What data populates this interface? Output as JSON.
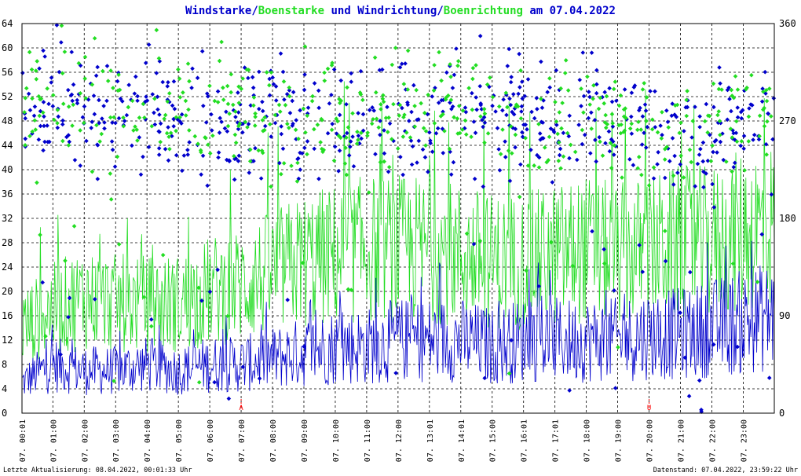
{
  "chart_data": {
    "type": "line",
    "title_parts": [
      {
        "text": "Windstarke",
        "color": "#0000cc"
      },
      {
        "text": "/",
        "color": "#0000cc"
      },
      {
        "text": "Boenstarke",
        "color": "#22dd22"
      },
      {
        "text": " und ",
        "color": "#0000cc"
      },
      {
        "text": "Windrichtung",
        "color": "#0000cc"
      },
      {
        "text": "/",
        "color": "#0000cc"
      },
      {
        "text": "Boenrichtung",
        "color": "#22dd22"
      },
      {
        "text": " am 07.04.2022",
        "color": "#0000cc"
      }
    ],
    "left_axis": {
      "ylim": [
        0,
        64
      ],
      "ticks": [
        "0",
        "4",
        "8",
        "12",
        "16",
        "20",
        "24",
        "28",
        "32",
        "36",
        "40",
        "44",
        "48",
        "52",
        "56",
        "60",
        "64"
      ]
    },
    "right_axis": {
      "ylim": [
        0,
        360
      ],
      "ticks": [
        "0",
        "90",
        "180",
        "270",
        "360"
      ]
    },
    "x_ticks": [
      "07. 00:01",
      "07. 01:00",
      "07. 02:00",
      "07. 03:00",
      "07. 04:00",
      "07. 05:00",
      "07. 06:00",
      "07. 07:00",
      "07. 08:00",
      "07. 09:00",
      "07. 10:00",
      "07. 11:00",
      "07. 12:00",
      "07. 13:01",
      "07. 14:01",
      "07. 15:00",
      "07. 16:01",
      "07. 17:01",
      "07. 18:00",
      "07. 19:00",
      "07. 20:00",
      "07. 21:00",
      "07. 22:00",
      "07. 23:00"
    ],
    "grid": true,
    "markers": [
      {
        "label": "A",
        "hour": 7.0
      },
      {
        "label": "U",
        "hour": 20.0
      }
    ],
    "series": [
      {
        "name": "Windstarke",
        "kind": "line",
        "axis": "left",
        "color": "#0000cc",
        "hours": [
          0,
          1,
          2,
          3,
          4,
          5,
          6,
          7,
          8,
          9,
          10,
          11,
          12,
          13,
          14,
          15,
          16,
          17,
          18,
          19,
          20,
          21,
          22,
          23,
          24
        ],
        "values": [
          5,
          8,
          7,
          7,
          8,
          7,
          8,
          8,
          9,
          10,
          11,
          11,
          12,
          12,
          12,
          11,
          12,
          12,
          12,
          12,
          13,
          13,
          14,
          15,
          16
        ]
      },
      {
        "name": "Boenstarke",
        "kind": "line",
        "axis": "left",
        "color": "#22dd22",
        "hours": [
          0,
          1,
          2,
          3,
          4,
          5,
          6,
          7,
          8,
          9,
          10,
          11,
          12,
          13,
          14,
          15,
          16,
          17,
          18,
          19,
          20,
          21,
          22,
          23,
          24
        ],
        "values": [
          14,
          17,
          19,
          18,
          18,
          18,
          20,
          21,
          23,
          25,
          26,
          27,
          27,
          27,
          26,
          25,
          25,
          26,
          27,
          26,
          27,
          28,
          28,
          30,
          31
        ]
      },
      {
        "name": "Windrichtung",
        "kind": "scatter",
        "axis": "right",
        "color": "#0000cc",
        "hours": [
          0,
          1,
          2,
          3,
          4,
          5,
          6,
          7,
          8,
          9,
          10,
          11,
          12,
          13,
          14,
          15,
          16,
          17,
          18,
          19,
          20,
          21,
          22,
          23,
          24
        ],
        "values": [
          280,
          285,
          280,
          270,
          285,
          280,
          270,
          275,
          270,
          270,
          280,
          270,
          280,
          270,
          285,
          280,
          275,
          270,
          275,
          270,
          265,
          255,
          260,
          265,
          270
        ]
      },
      {
        "name": "Boenrichtung",
        "kind": "scatter",
        "axis": "right",
        "color": "#22dd22",
        "hours": [
          0,
          1,
          2,
          3,
          4,
          5,
          6,
          7,
          8,
          9,
          10,
          11,
          12,
          13,
          14,
          15,
          16,
          17,
          18,
          19,
          20,
          21,
          22,
          23,
          24
        ],
        "values": [
          285,
          290,
          285,
          280,
          290,
          280,
          275,
          280,
          275,
          275,
          280,
          275,
          275,
          270,
          285,
          275,
          270,
          265,
          275,
          270,
          260,
          255,
          265,
          275,
          280
        ]
      }
    ]
  },
  "footer": {
    "left": "Letzte Aktualisierung: 08.04.2022, 00:01:33 Uhr",
    "right": "Datenstand: 07.04.2022, 23:59:22 Uhr"
  }
}
